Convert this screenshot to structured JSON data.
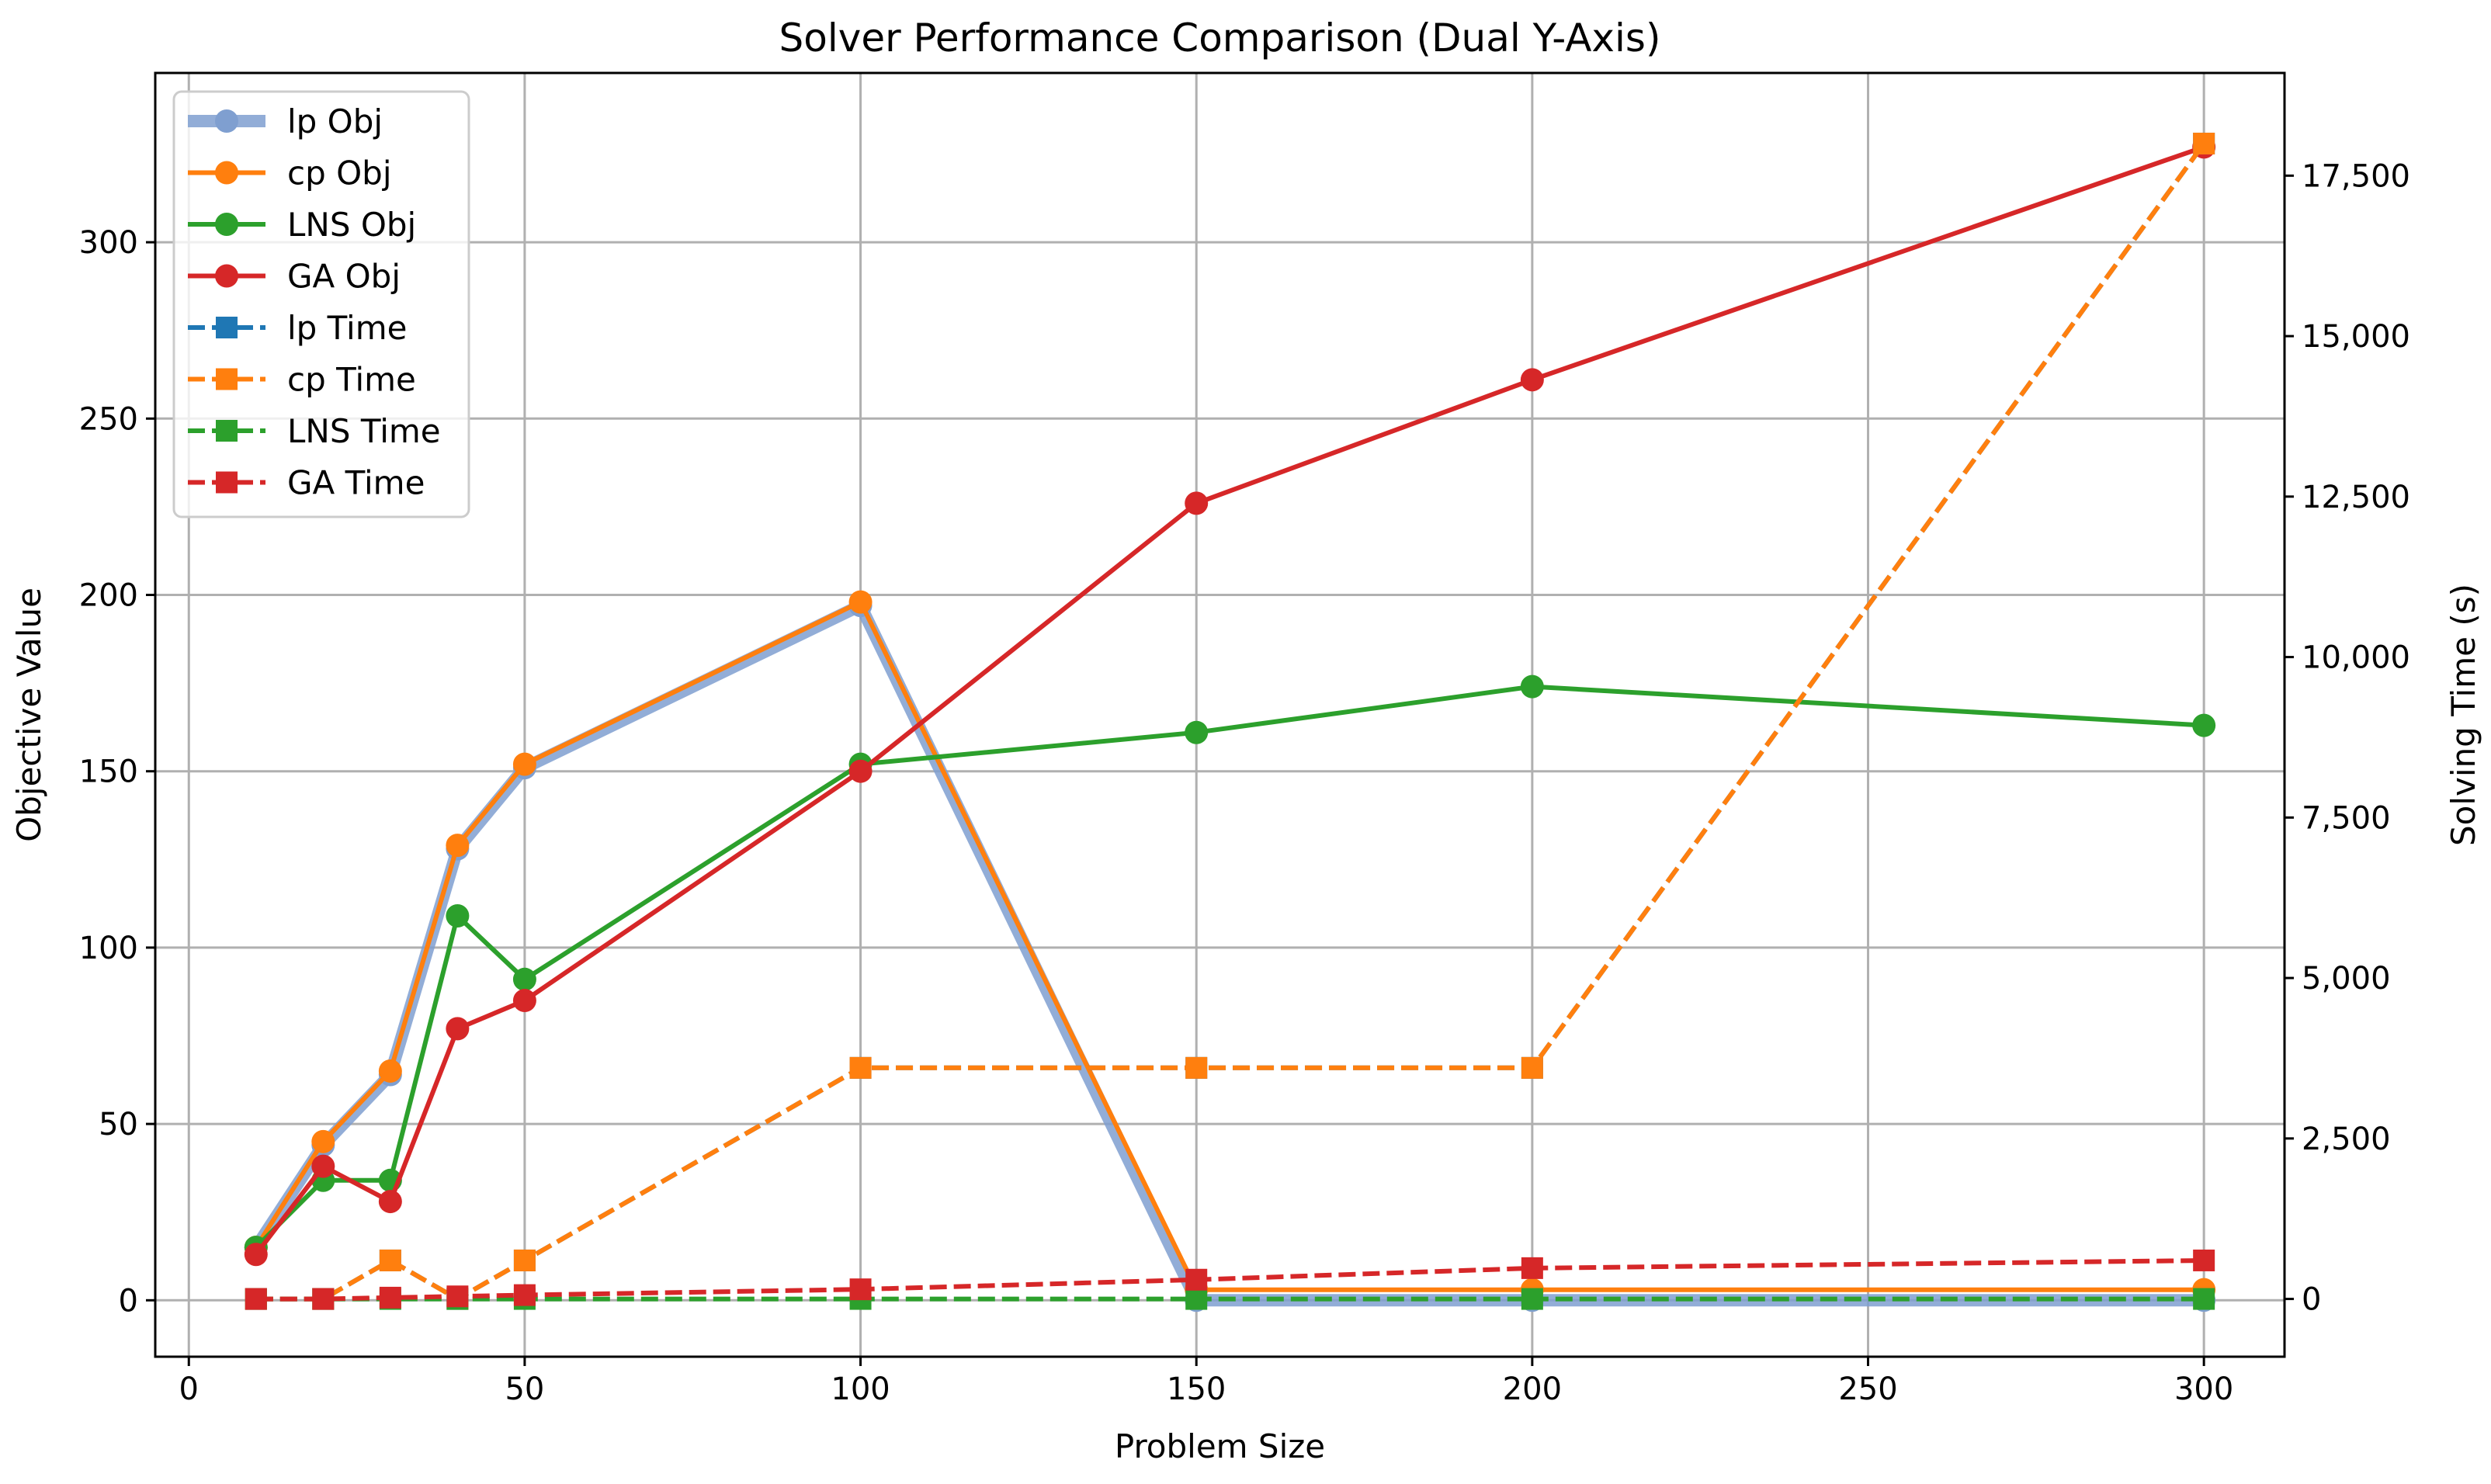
{
  "chart_data": {
    "type": "line",
    "title": "Solver Performance Comparison (Dual Y-Axis)",
    "xlabel": "Problem Size",
    "ylabel": "Objective Value",
    "y2label": "Solving Time (s)",
    "x": [
      10,
      20,
      30,
      40,
      50,
      100,
      150,
      200,
      300
    ],
    "xlim": [
      -5,
      312
    ],
    "ylim": [
      -16,
      348
    ],
    "y2lim": [
      -900,
      19100
    ],
    "xticks": [
      0,
      50,
      100,
      150,
      200,
      250,
      300
    ],
    "xtick_labels": [
      "0",
      "50",
      "100",
      "150",
      "200",
      "250",
      "300"
    ],
    "yticks": [
      0,
      50,
      100,
      150,
      200,
      250,
      300
    ],
    "ytick_labels": [
      "0",
      "50",
      "100",
      "150",
      "200",
      "250",
      "300"
    ],
    "y2ticks": [
      0,
      2500,
      5000,
      7500,
      10000,
      12500,
      15000,
      17500
    ],
    "y2tick_labels": [
      "0",
      "2,500",
      "5,000",
      "7,500",
      "10,000",
      "12,500",
      "15,000",
      "17,500"
    ],
    "grid": true,
    "legend_position": "top-left",
    "series": [
      {
        "name": "lp Obj",
        "axis": "left",
        "color": "#7f9fd0",
        "style": "solid",
        "marker": "circle",
        "thick": true,
        "values": [
          15,
          44,
          64,
          128,
          151,
          197,
          0,
          0,
          0
        ]
      },
      {
        "name": "cp Obj",
        "axis": "left",
        "color": "#ff7f0e",
        "style": "solid",
        "marker": "circle",
        "values": [
          15,
          45,
          65,
          129,
          152,
          198,
          3,
          3,
          3
        ]
      },
      {
        "name": "LNS Obj",
        "axis": "left",
        "color": "#2ca02c",
        "style": "solid",
        "marker": "circle",
        "values": [
          15,
          34,
          34,
          109,
          91,
          152,
          161,
          174,
          163
        ]
      },
      {
        "name": "GA Obj",
        "axis": "left",
        "color": "#d62728",
        "style": "solid",
        "marker": "circle",
        "values": [
          13,
          38,
          28,
          77,
          85,
          150,
          226,
          261,
          327
        ]
      },
      {
        "name": "lp Time",
        "axis": "right",
        "color": "#1f77b4",
        "style": "dashed",
        "marker": "square",
        "values": [
          0,
          0,
          600,
          0,
          600,
          3600,
          3600,
          3600,
          18000
        ]
      },
      {
        "name": "cp Time",
        "axis": "right",
        "color": "#ff7f0e",
        "style": "dashed",
        "marker": "square",
        "values": [
          0,
          0,
          600,
          0,
          600,
          3600,
          3600,
          3600,
          18000
        ]
      },
      {
        "name": "LNS Time",
        "axis": "right",
        "color": "#2ca02c",
        "style": "dashed",
        "marker": "square",
        "values": [
          0,
          0,
          0,
          0,
          0,
          0,
          0,
          0,
          0
        ]
      },
      {
        "name": "GA Time",
        "axis": "right",
        "color": "#d62728",
        "style": "dashed",
        "marker": "square",
        "values": [
          0,
          0,
          20,
          40,
          60,
          150,
          300,
          480,
          600
        ]
      }
    ]
  }
}
